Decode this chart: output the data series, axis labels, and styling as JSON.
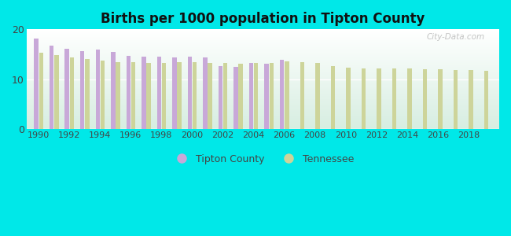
{
  "title": "Births per 1000 population in Tipton County",
  "background_color": "#00e8e8",
  "plot_bg_colors": [
    "#d0ede8",
    "#e8f5f0",
    "#f0faf8",
    "#ffffff"
  ],
  "tipton_color": "#c8a8d8",
  "tennessee_color": "#cdd49a",
  "years": [
    1990,
    1991,
    1992,
    1993,
    1994,
    1995,
    1996,
    1997,
    1998,
    1999,
    2000,
    2001,
    2002,
    2003,
    2004,
    2005,
    2006,
    2007,
    2008,
    2009,
    2010,
    2011,
    2012,
    2013,
    2014,
    2015,
    2016,
    2017,
    2018,
    2019
  ],
  "tipton": [
    18.2,
    16.8,
    16.1,
    15.7,
    16.0,
    15.5,
    14.7,
    14.6,
    14.5,
    14.3,
    14.5,
    14.4,
    12.6,
    12.5,
    13.2,
    13.1,
    13.9,
    null,
    null,
    null,
    null,
    null,
    null,
    null,
    null,
    null,
    null,
    null,
    null,
    null
  ],
  "tennessee": [
    15.3,
    14.8,
    14.3,
    14.0,
    13.7,
    13.4,
    13.4,
    13.3,
    13.2,
    13.4,
    13.5,
    13.2,
    13.2,
    13.1,
    13.2,
    13.3,
    13.6,
    13.5,
    13.3,
    12.7,
    12.3,
    12.2,
    12.2,
    12.1,
    12.1,
    12.0,
    12.0,
    11.9,
    11.8,
    11.7
  ],
  "ylim": [
    0,
    20
  ],
  "yticks": [
    0,
    10,
    20
  ],
  "bar_width": 0.28,
  "legend_labels": [
    "Tipton County",
    "Tennessee"
  ],
  "watermark": "City-Data.com"
}
